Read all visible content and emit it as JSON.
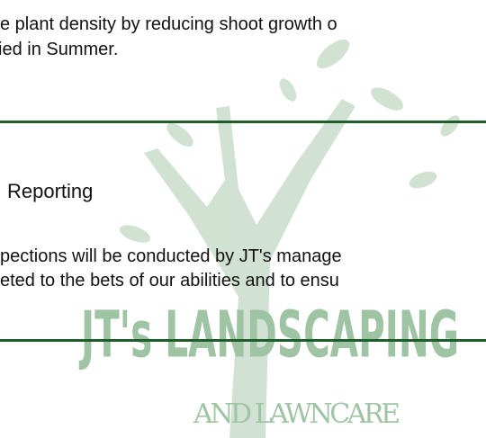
{
  "document": {
    "paragraph_1": {
      "lines": [
        "e plant density by reducing shoot growth o",
        "ied in Summer."
      ]
    },
    "section": {
      "heading": "Reporting"
    },
    "paragraph_2": {
      "lines": [
        "pections will be conducted by JT's manage",
        "eted to the bets of our abilities and to ensu"
      ]
    },
    "watermark": {
      "name": "JT's LANDSCAPING",
      "tagline": "AND LAWNCARE"
    }
  }
}
